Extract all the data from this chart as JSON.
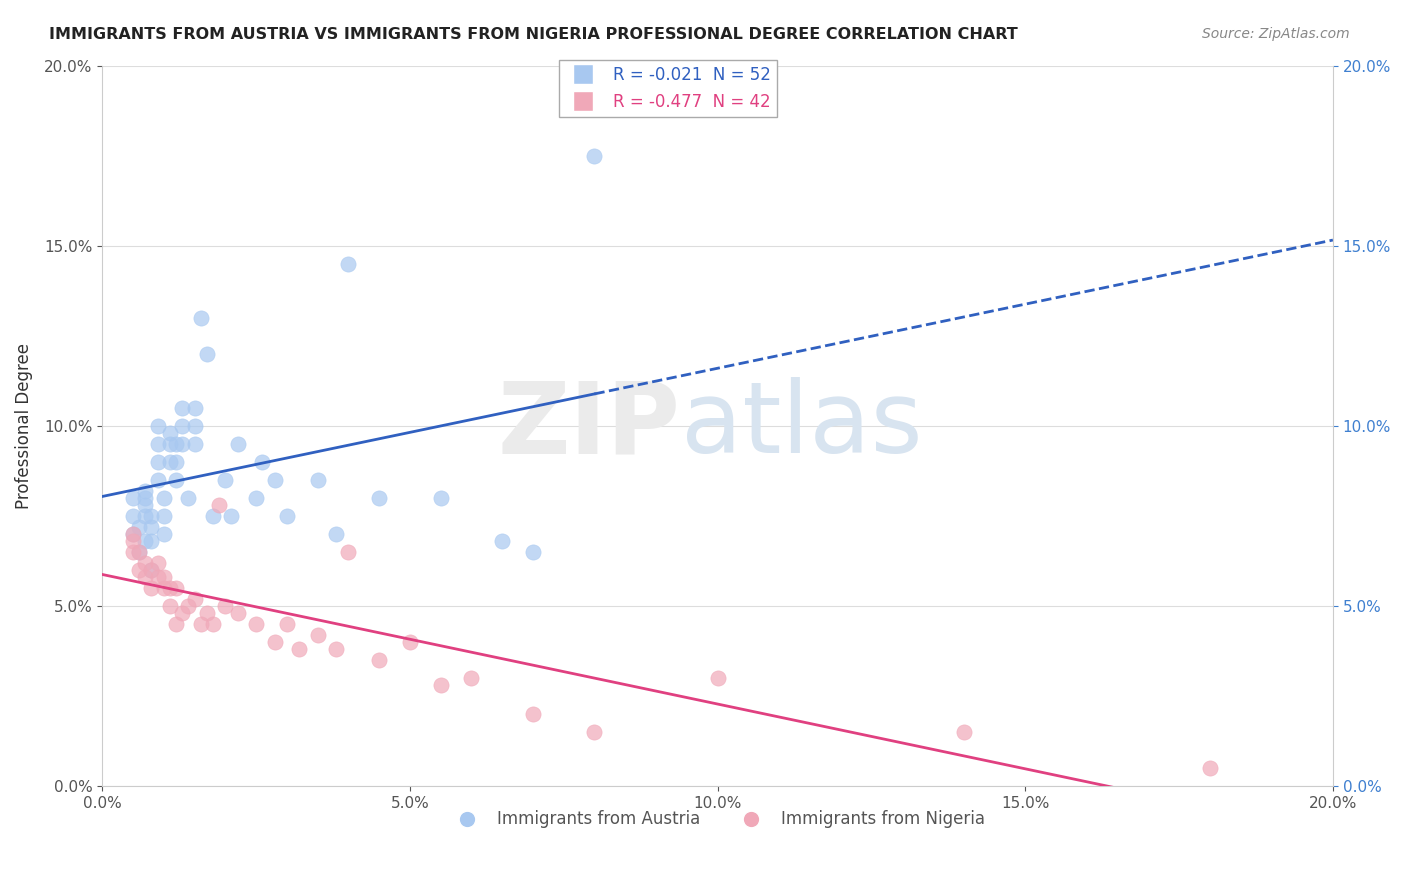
{
  "title": "IMMIGRANTS FROM AUSTRIA VS IMMIGRANTS FROM NIGERIA PROFESSIONAL DEGREE CORRELATION CHART",
  "source": "Source: ZipAtlas.com",
  "ylabel": "Professional Degree",
  "xlabel": "",
  "legend_label1": "Immigrants from Austria",
  "legend_label2": "Immigrants from Nigeria",
  "R1": -0.021,
  "N1": 52,
  "R2": -0.477,
  "N2": 42,
  "color1": "#a8c8f0",
  "color2": "#f0a8b8",
  "line_color1": "#3060c0",
  "line_color2": "#e04080",
  "xlim": [
    0.0,
    0.2
  ],
  "ylim": [
    0.0,
    0.2
  ],
  "blue_x": [
    0.005,
    0.005,
    0.005,
    0.006,
    0.006,
    0.007,
    0.007,
    0.007,
    0.007,
    0.007,
    0.008,
    0.008,
    0.008,
    0.008,
    0.009,
    0.009,
    0.009,
    0.009,
    0.01,
    0.01,
    0.01,
    0.011,
    0.011,
    0.011,
    0.012,
    0.012,
    0.012,
    0.013,
    0.013,
    0.013,
    0.014,
    0.015,
    0.015,
    0.015,
    0.016,
    0.017,
    0.018,
    0.02,
    0.021,
    0.022,
    0.025,
    0.026,
    0.028,
    0.03,
    0.035,
    0.038,
    0.04,
    0.045,
    0.055,
    0.065,
    0.07,
    0.08
  ],
  "blue_y": [
    0.07,
    0.075,
    0.08,
    0.065,
    0.072,
    0.075,
    0.078,
    0.08,
    0.082,
    0.068,
    0.06,
    0.068,
    0.072,
    0.075,
    0.085,
    0.09,
    0.095,
    0.1,
    0.07,
    0.075,
    0.08,
    0.09,
    0.095,
    0.098,
    0.085,
    0.09,
    0.095,
    0.095,
    0.1,
    0.105,
    0.08,
    0.095,
    0.1,
    0.105,
    0.13,
    0.12,
    0.075,
    0.085,
    0.075,
    0.095,
    0.08,
    0.09,
    0.085,
    0.075,
    0.085,
    0.07,
    0.145,
    0.08,
    0.08,
    0.068,
    0.065,
    0.175
  ],
  "pink_x": [
    0.005,
    0.005,
    0.005,
    0.006,
    0.006,
    0.007,
    0.007,
    0.008,
    0.008,
    0.009,
    0.009,
    0.01,
    0.01,
    0.011,
    0.011,
    0.012,
    0.012,
    0.013,
    0.014,
    0.015,
    0.016,
    0.017,
    0.018,
    0.019,
    0.02,
    0.022,
    0.025,
    0.028,
    0.03,
    0.032,
    0.035,
    0.038,
    0.04,
    0.045,
    0.05,
    0.055,
    0.06,
    0.07,
    0.08,
    0.1,
    0.14,
    0.18
  ],
  "pink_y": [
    0.065,
    0.07,
    0.068,
    0.06,
    0.065,
    0.058,
    0.062,
    0.055,
    0.06,
    0.058,
    0.062,
    0.055,
    0.058,
    0.05,
    0.055,
    0.045,
    0.055,
    0.048,
    0.05,
    0.052,
    0.045,
    0.048,
    0.045,
    0.078,
    0.05,
    0.048,
    0.045,
    0.04,
    0.045,
    0.038,
    0.042,
    0.038,
    0.065,
    0.035,
    0.04,
    0.028,
    0.03,
    0.02,
    0.015,
    0.03,
    0.015,
    0.005
  ]
}
